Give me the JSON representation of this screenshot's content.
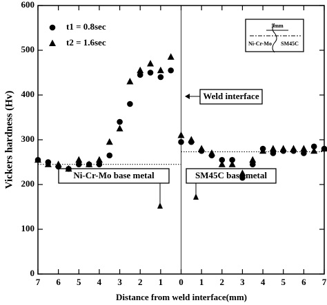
{
  "chart_data": {
    "type": "scatter",
    "xlabel": "Distance from weld interface(mm)",
    "ylabel": "Vickers  hardness  (Hv)",
    "xlim": [
      -7,
      7
    ],
    "ylim": [
      0,
      600
    ],
    "xticks": [
      {
        "value": -7,
        "label": "7"
      },
      {
        "value": -6,
        "label": "6"
      },
      {
        "value": -5,
        "label": "5"
      },
      {
        "value": -4,
        "label": "4"
      },
      {
        "value": -3,
        "label": "3"
      },
      {
        "value": -2,
        "label": "2"
      },
      {
        "value": -1,
        "label": "1"
      },
      0,
      1,
      2,
      3,
      4,
      5,
      6,
      7
    ],
    "yticks": [
      0,
      100,
      200,
      300,
      400,
      500,
      600
    ],
    "series": [
      {
        "name": "t1 = 0.8sec",
        "marker": "circle",
        "color": "#000000",
        "x": [
          -7,
          -6.5,
          -6,
          -5.5,
          -5,
          -4.5,
          -4,
          -3.5,
          -3,
          -2.5,
          -2,
          -1.5,
          -1,
          -0.5,
          0,
          0.5,
          1,
          1.5,
          2,
          2.5,
          3,
          3.5,
          4,
          4.5,
          5,
          5.5,
          6,
          6.5,
          7
        ],
        "values": [
          255,
          250,
          240,
          235,
          245,
          245,
          245,
          265,
          340,
          380,
          445,
          450,
          440,
          455,
          295,
          295,
          275,
          265,
          255,
          255,
          215,
          245,
          280,
          270,
          275,
          275,
          270,
          285,
          280
        ]
      },
      {
        "name": "t2 = 1.6sec",
        "marker": "triangle",
        "color": "#000000",
        "x": [
          -7,
          -6.5,
          -6,
          -5.5,
          -5,
          -4.5,
          -4,
          -3.5,
          -3,
          -2.5,
          -2,
          -1.5,
          -1,
          -0.5,
          0,
          0.5,
          1,
          1.5,
          2,
          2.5,
          3,
          3.5,
          4,
          4.5,
          5,
          5.5,
          6,
          6.5,
          7
        ],
        "values": [
          255,
          245,
          245,
          235,
          255,
          245,
          255,
          295,
          325,
          430,
          455,
          470,
          455,
          485,
          310,
          300,
          280,
          270,
          245,
          245,
          225,
          255,
          275,
          280,
          280,
          280,
          280,
          275,
          280
        ]
      }
    ],
    "reference_lines": [
      {
        "x": [
          -7,
          0
        ],
        "value": 245
      },
      {
        "x": [
          0,
          7
        ],
        "value": 273
      }
    ],
    "vline": 0,
    "annotations": [
      "Weld interface",
      "Ni-Cr-Mo base metal",
      "SM45C base metal"
    ],
    "inset": {
      "dimension": "5mm",
      "left": "Ni-Cr-Mo",
      "right": "SM45C"
    }
  }
}
